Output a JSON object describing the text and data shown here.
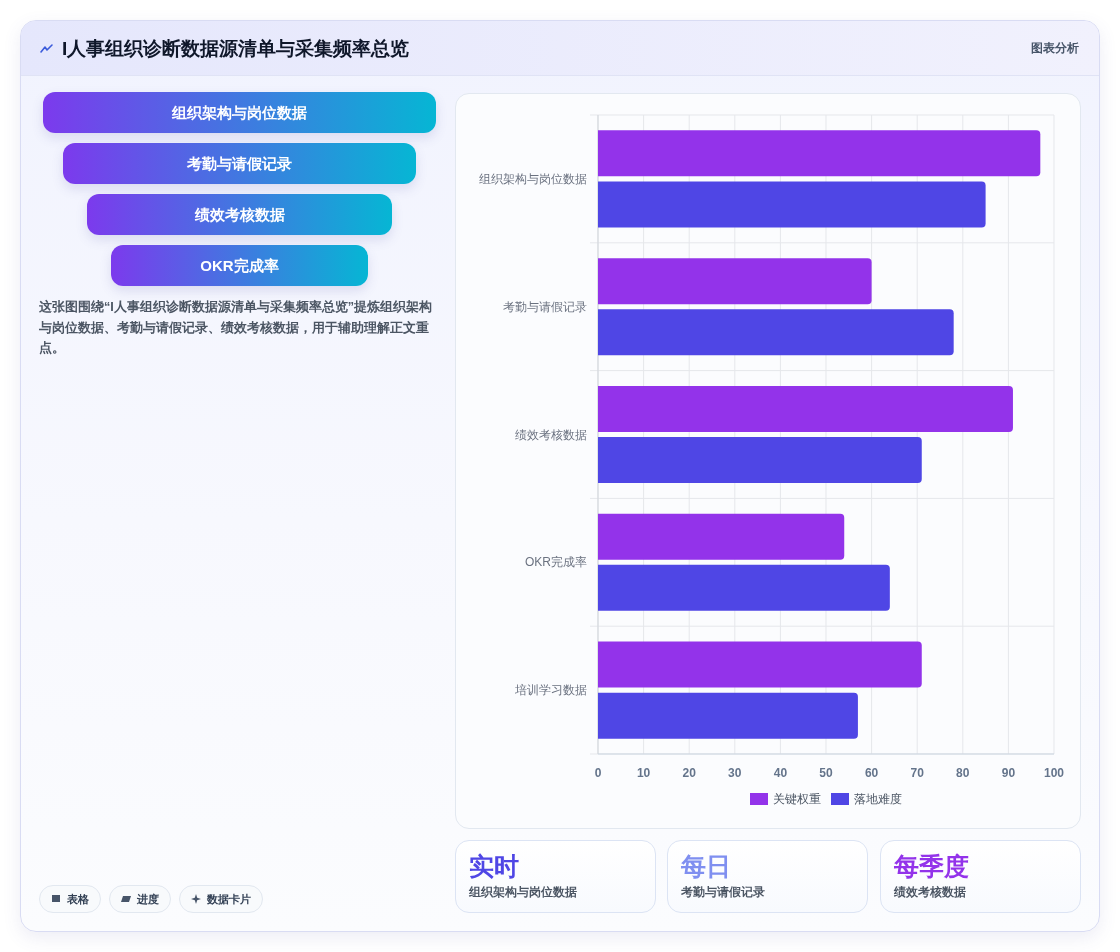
{
  "chart_data": {
    "type": "bar",
    "orientation": "horizontal",
    "title": "I人事组织诊断数据源清单与采集频率总览",
    "categories": [
      "组织架构与岗位数据",
      "考勤与请假记录",
      "绩效考核数据",
      "OKR完成率",
      "培训学习数据"
    ],
    "series": [
      {
        "name": "关键权重",
        "color": "#9333ea",
        "values": [
          97,
          60,
          91,
          54,
          71
        ]
      },
      {
        "name": "落地难度",
        "color": "#4f46e5",
        "values": [
          85,
          78,
          71,
          64,
          57
        ]
      }
    ],
    "xlim": [
      0,
      100
    ],
    "xticks": [
      0,
      10,
      20,
      30,
      40,
      50,
      60,
      70,
      80,
      90,
      100
    ],
    "grid": true,
    "legend": "bottom",
    "annotations": [
      "图表分析",
      "组织架构与岗位数据",
      "考勤与请假记录",
      "绩效考核数据",
      "OKR完成率",
      "这张图围绕“I人事组织诊断数据源清单与采集频率总览”提炼组织架构与岗位数据、考勤与请假记录、绩效考核数据，用于辅助理解正文重点。",
      "实时",
      "组织架构与岗位数据",
      "每日",
      "考勤与请假记录",
      "每季度",
      "绩效考核数据",
      "表格",
      "进度",
      "数据卡片"
    ]
  }
}
